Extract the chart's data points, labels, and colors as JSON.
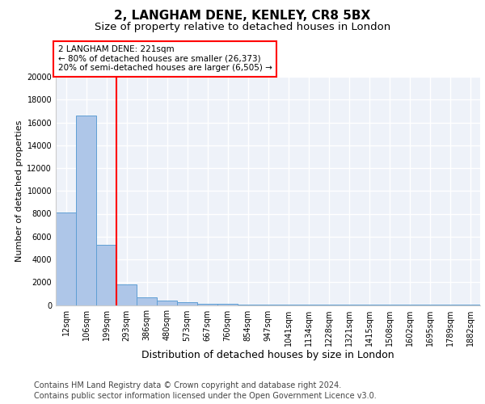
{
  "title1": "2, LANGHAM DENE, KENLEY, CR8 5BX",
  "title2": "Size of property relative to detached houses in London",
  "xlabel": "Distribution of detached houses by size in London",
  "ylabel": "Number of detached properties",
  "bar_labels": [
    "12sqm",
    "106sqm",
    "199sqm",
    "293sqm",
    "386sqm",
    "480sqm",
    "573sqm",
    "667sqm",
    "760sqm",
    "854sqm",
    "947sqm",
    "1041sqm",
    "1134sqm",
    "1228sqm",
    "1321sqm",
    "1415sqm",
    "1508sqm",
    "1602sqm",
    "1695sqm",
    "1789sqm",
    "1882sqm"
  ],
  "bar_values": [
    8100,
    16600,
    5300,
    1800,
    700,
    380,
    220,
    130,
    80,
    50,
    35,
    25,
    18,
    14,
    10,
    8,
    6,
    5,
    4,
    3,
    2
  ],
  "bar_color": "#aec6e8",
  "bar_edgecolor": "#5f9fd4",
  "vline_x": 2.5,
  "vline_color": "red",
  "annotation_text": "2 LANGHAM DENE: 221sqm\n← 80% of detached houses are smaller (26,373)\n20% of semi-detached houses are larger (6,505) →",
  "annotation_box_color": "red",
  "ylim": [
    0,
    20000
  ],
  "yticks": [
    0,
    2000,
    4000,
    6000,
    8000,
    10000,
    12000,
    14000,
    16000,
    18000,
    20000
  ],
  "footnote1": "Contains HM Land Registry data © Crown copyright and database right 2024.",
  "footnote2": "Contains public sector information licensed under the Open Government Licence v3.0.",
  "bg_color": "#eef2f9",
  "grid_color": "#ffffff",
  "title1_fontsize": 11,
  "title2_fontsize": 9.5,
  "ylabel_fontsize": 8,
  "xlabel_fontsize": 9,
  "tick_fontsize": 7,
  "annotation_fontsize": 7.5,
  "footnote_fontsize": 7
}
